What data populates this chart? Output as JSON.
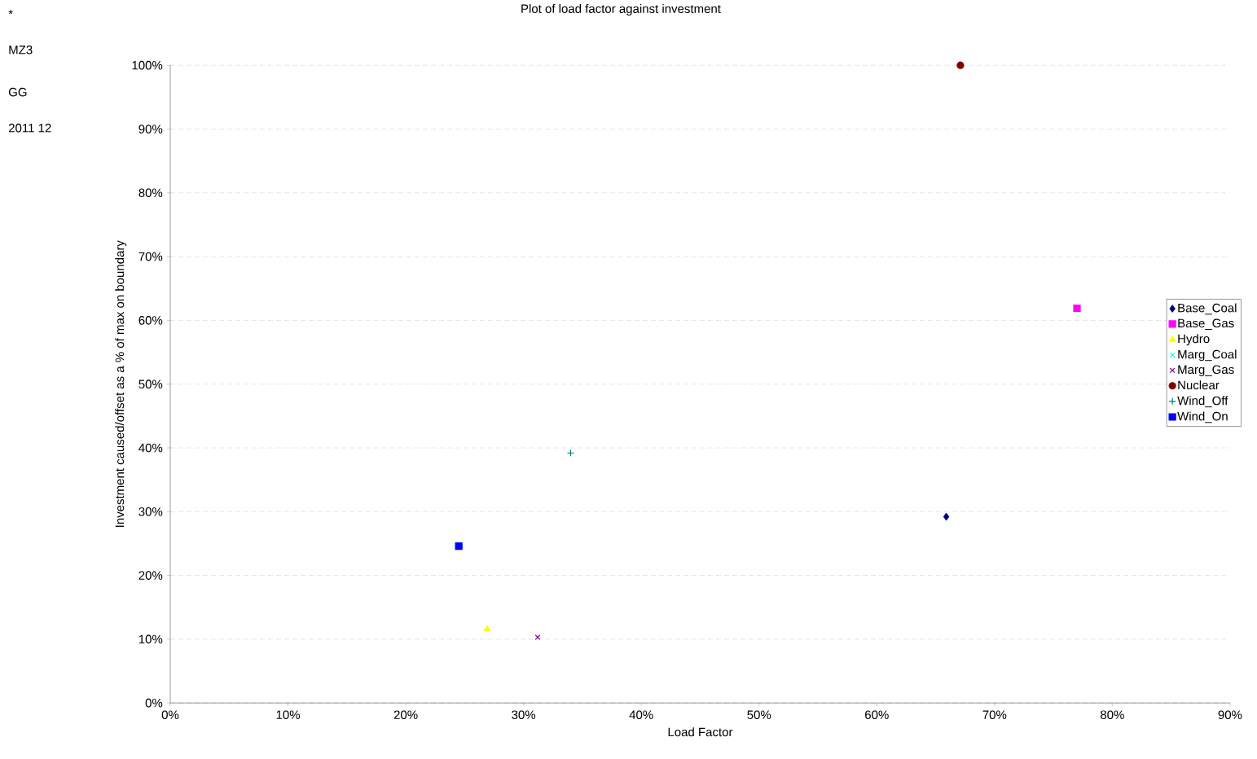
{
  "chart_data": {
    "type": "scatter",
    "title": "Plot of load factor against investment",
    "xlabel": "Load Factor",
    "ylabel": "Investment caused/offset as a % of max on boundary",
    "annotations": [
      "*",
      "MZ3",
      "GG",
      "2011 12"
    ],
    "series": [
      {
        "name": "Base_Coal",
        "color": "#000080",
        "marker": "diamond",
        "x": [
          65.9
        ],
        "values": [
          29.2
        ]
      },
      {
        "name": "Base_Gas",
        "color": "#ff00ff",
        "marker": "square",
        "x": [
          77.0
        ],
        "values": [
          61.9
        ]
      },
      {
        "name": "Hydro",
        "color": "#ffff00",
        "marker": "triangle",
        "x": [
          26.9
        ],
        "values": [
          11.6
        ]
      },
      {
        "name": "Marg_Coal",
        "color": "#00ffff",
        "marker": "cross",
        "x": [
          null
        ],
        "values": [
          null
        ]
      },
      {
        "name": "Marg_Gas",
        "color": "#800080",
        "marker": "cross",
        "x": [
          31.2
        ],
        "values": [
          10.3
        ]
      },
      {
        "name": "Nuclear",
        "color": "#800000",
        "marker": "circle",
        "x": [
          67.1
        ],
        "values": [
          100
        ]
      },
      {
        "name": "Wind_Off",
        "color": "#008080",
        "marker": "plus",
        "x": [
          34.0
        ],
        "values": [
          39.2
        ]
      },
      {
        "name": "Wind_On",
        "color": "#0000ff",
        "marker": "square",
        "x": [
          24.5
        ],
        "values": [
          24.6
        ]
      }
    ],
    "xlim": [
      0,
      90
    ],
    "ylim": [
      0,
      100
    ],
    "xticks": [
      {
        "value": 0,
        "label": "0%"
      },
      {
        "value": 10,
        "label": "10%"
      },
      {
        "value": 20,
        "label": "20%"
      },
      {
        "value": 30,
        "label": "30%"
      },
      {
        "value": 40,
        "label": "40%"
      },
      {
        "value": 50,
        "label": "50%"
      },
      {
        "value": 60,
        "label": "60%"
      },
      {
        "value": 70,
        "label": "70%"
      },
      {
        "value": 80,
        "label": "80%"
      },
      {
        "value": 90,
        "label": "90%"
      }
    ],
    "yticks": [
      {
        "value": 0,
        "label": "0%"
      },
      {
        "value": 10,
        "label": "10%"
      },
      {
        "value": 20,
        "label": "20%"
      },
      {
        "value": 30,
        "label": "30%"
      },
      {
        "value": 40,
        "label": "40%"
      },
      {
        "value": 50,
        "label": "50%"
      },
      {
        "value": 60,
        "label": "60%"
      },
      {
        "value": 70,
        "label": "70%"
      },
      {
        "value": 80,
        "label": "80%"
      },
      {
        "value": 90,
        "label": "90%"
      },
      {
        "value": 100,
        "label": "100%"
      }
    ],
    "grid": "y",
    "legend": "right"
  }
}
